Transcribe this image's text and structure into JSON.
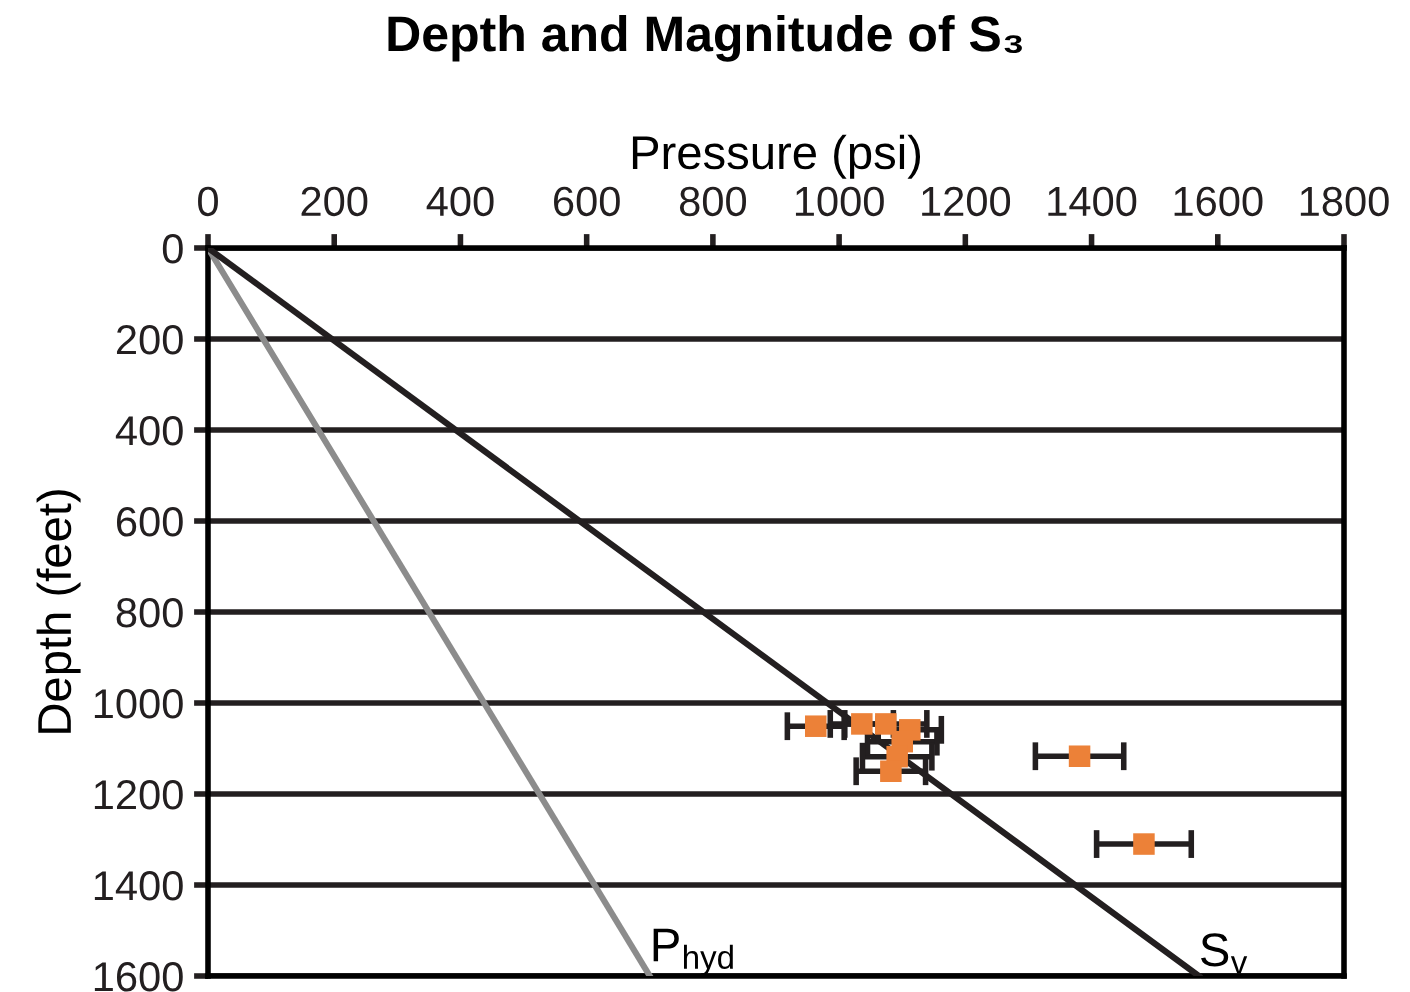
{
  "chart_data": {
    "type": "scatter",
    "title": "Depth and Magnitude of S₃",
    "xlabel": "Pressure (psi)",
    "ylabel": "Depth (feet)",
    "xlim": [
      0,
      1800
    ],
    "xticks": [
      0,
      200,
      400,
      600,
      800,
      1000,
      1200,
      1400,
      1600,
      1800
    ],
    "ylim": [
      1600,
      0
    ],
    "yticks": [
      0,
      200,
      400,
      600,
      800,
      1000,
      1200,
      1400,
      1600
    ],
    "grid": "y",
    "legend": false,
    "series": [
      {
        "type": "line",
        "name": "P$_{hyd}$",
        "color": "#8c8c8c",
        "marker": "none",
        "x": [
          0,
          700
        ],
        "values": [
          0,
          1600
        ]
      },
      {
        "type": "line",
        "name": "S$_{v}$",
        "color": "#231f20",
        "marker": "none",
        "x": [
          0,
          1570
        ],
        "values": [
          0,
          1600
        ]
      },
      {
        "color": "#ec8138",
        "marker": "square",
        "x": [
          963,
          1036,
          1074,
          1112,
          1100,
          1092,
          1082,
          1381,
          1483
        ],
        "values": [
          1051,
          1046,
          1046,
          1059,
          1085,
          1118,
          1150,
          1117,
          1310
        ],
        "xerrors": [
          45,
          50,
          65,
          50,
          55,
          55,
          55,
          70,
          75
        ]
      }
    ]
  }
}
